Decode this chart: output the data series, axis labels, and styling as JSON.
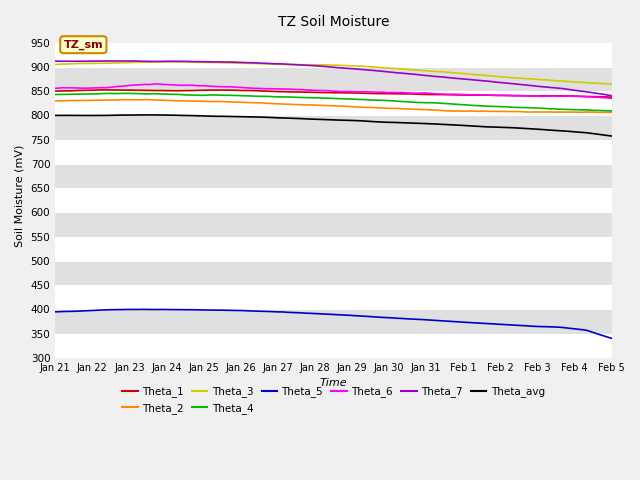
{
  "title": "TZ Soil Moisture",
  "xlabel": "Time",
  "ylabel": "Soil Moisture (mV)",
  "ylim": [
    300,
    970
  ],
  "yticks": [
    300,
    350,
    400,
    450,
    500,
    550,
    600,
    650,
    700,
    750,
    800,
    850,
    900,
    950
  ],
  "fig_bg_color": "#f0f0f0",
  "plot_bg_color": "#d8d8d8",
  "band_light": "#e8e8e8",
  "band_dark": "#d0d0d0",
  "annotation_text": "TZ_sm",
  "annotation_bg": "#ffffcc",
  "annotation_border": "#cc8800",
  "series": {
    "Theta_1": {
      "color": "#cc0000"
    },
    "Theta_2": {
      "color": "#ff8800"
    },
    "Theta_3": {
      "color": "#cccc00"
    },
    "Theta_4": {
      "color": "#00bb00"
    },
    "Theta_5": {
      "color": "#0000cc"
    },
    "Theta_6": {
      "color": "#ff00ff"
    },
    "Theta_7": {
      "color": "#9900cc"
    },
    "Theta_avg": {
      "color": "#000000"
    }
  },
  "n_points": 500,
  "x_tick_labels": [
    "Jan 21",
    "Jan 22",
    "Jan 23",
    "Jan 24",
    "Jan 25",
    "Jan 26",
    "Jan 27",
    "Jan 28",
    "Jan 29",
    "Jan 30",
    "Jan 31",
    "Feb 1",
    "Feb 2",
    "Feb 3",
    "Feb 4",
    "Feb 5"
  ],
  "n_ticks": 16,
  "keypoints": {
    "Theta_1": [
      850,
      851,
      852,
      851,
      850,
      850,
      851,
      851,
      850,
      848,
      847,
      846,
      845,
      844,
      843,
      842,
      841,
      841,
      840,
      839,
      839,
      838,
      837
    ],
    "Theta_2": [
      830,
      831,
      832,
      833,
      832,
      831,
      830,
      829,
      828,
      826,
      824,
      822,
      820,
      818,
      816,
      814,
      812,
      811,
      810,
      809,
      808,
      808,
      807
    ],
    "Theta_3": [
      905,
      907,
      908,
      909,
      910,
      910,
      909,
      908,
      907,
      906,
      906,
      905,
      903,
      900,
      896,
      892,
      888,
      883,
      879,
      875,
      871,
      868,
      865
    ],
    "Theta_4": [
      843,
      843,
      844,
      844,
      843,
      842,
      841,
      840,
      838,
      836,
      834,
      832,
      830,
      828,
      825,
      823,
      820,
      817,
      815,
      813,
      811,
      809,
      807
    ],
    "Theta_5": [
      395,
      397,
      399,
      400,
      400,
      399,
      398,
      397,
      395,
      393,
      390,
      387,
      384,
      381,
      378,
      375,
      372,
      369,
      366,
      363,
      361,
      355,
      338
    ],
    "Theta_6": [
      856,
      857,
      858,
      862,
      865,
      862,
      860,
      858,
      856,
      854,
      852,
      850,
      848,
      846,
      845,
      843,
      841,
      840,
      839,
      838,
      837,
      835,
      832
    ],
    "Theta_7": [
      912,
      912,
      913,
      913,
      912,
      912,
      911,
      910,
      908,
      906,
      903,
      899,
      895,
      890,
      885,
      880,
      875,
      870,
      865,
      860,
      855,
      848,
      840
    ],
    "Theta_avg": [
      800,
      800,
      800,
      801,
      801,
      800,
      799,
      798,
      797,
      795,
      793,
      791,
      789,
      786,
      784,
      782,
      779,
      776,
      774,
      771,
      768,
      764,
      757
    ]
  }
}
